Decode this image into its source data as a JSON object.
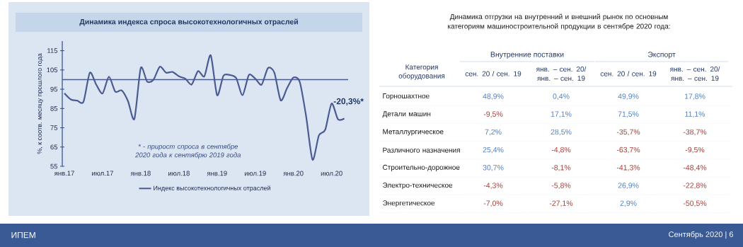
{
  "chart_data": [
    {
      "type": "line",
      "title": "Динамика индекса спроса высокотехнологичных отраслей",
      "ylabel": "%, к соотв. месяцу прошлого года",
      "x": [
        "2017-01",
        "2017-02",
        "2017-03",
        "2017-04",
        "2017-05",
        "2017-06",
        "2017-07",
        "2017-08",
        "2017-09",
        "2017-10",
        "2017-11",
        "2017-12",
        "2018-01",
        "2018-02",
        "2018-03",
        "2018-04",
        "2018-05",
        "2018-06",
        "2018-07",
        "2018-08",
        "2018-09",
        "2018-10",
        "2018-11",
        "2018-12",
        "2019-01",
        "2019-02",
        "2019-03",
        "2019-04",
        "2019-05",
        "2019-06",
        "2019-07",
        "2019-08",
        "2019-09",
        "2019-10",
        "2019-11",
        "2019-12",
        "2020-01",
        "2020-02",
        "2020-03",
        "2020-04",
        "2020-05",
        "2020-06",
        "2020-07",
        "2020-08",
        "2020-09"
      ],
      "series": [
        {
          "name": "Индекс высокотехнологичных отраслей",
          "color": "#4a5b92",
          "values": [
            92.9,
            89.7,
            89.1,
            88.5,
            103.6,
            97.4,
            92.8,
            101.5,
            93.7,
            94.4,
            88.8,
            79.6,
            106,
            99,
            99.9,
            106.7,
            103.6,
            104,
            101.7,
            100.5,
            97.4,
            104.4,
            101.7,
            112.6,
            91.9,
            102,
            102.4,
            100.8,
            91.9,
            102.4,
            100.5,
            97.4,
            106,
            103.6,
            89.2,
            95.6,
            101.1,
            98.7,
            80.8,
            58.4,
            71,
            74,
            87.6,
            79.4,
            79.8
          ]
        }
      ],
      "xlim": [
        "2016-12-21",
        "2020-09-19"
      ],
      "ylim": [
        55,
        120
      ],
      "xticks": [
        {
          "value": "2017-01",
          "label": "янв.17"
        },
        {
          "value": "2017-07",
          "label": "июл.17"
        },
        {
          "value": "2018-01",
          "label": "янв.18"
        },
        {
          "value": "2018-07",
          "label": "июл.18"
        },
        {
          "value": "2019-01",
          "label": "янв.19"
        },
        {
          "value": "2019-07",
          "label": "июл.19"
        },
        {
          "value": "2020-01",
          "label": "янв.20"
        },
        {
          "value": "2020-07",
          "label": "июл.20"
        }
      ],
      "yticks": [
        55,
        65,
        75,
        85,
        95,
        105,
        115
      ],
      "ref_lines": [
        {
          "axis": "y",
          "value": 100,
          "color": "#4a5b92"
        }
      ],
      "legend": "bottom",
      "annotations": [
        "-20,3%*",
        "* - прирост  спроса в сентябре 2020 года к сентябрю 2019 года"
      ]
    },
    {
      "type": "heatmap",
      "title": "Динамика отгрузки на внутренний и внешний рынок по основным категориям машиностроительной продукции в сентябре 2020 года:",
      "ylabel": "Категория оборудования",
      "categories": [
        "сен. 20 / сен. 19",
        "янв. – сен. 20/ янв. – сен. 19",
        "сен. 20 / сен. 19",
        "янв. – сен. 20/ янв. – сен. 19"
      ],
      "y_categories": [
        "Горношахтное",
        "Детали машин",
        "Металлургическое",
        "Различного назначения",
        "Строительно-дорожное",
        "Электро-техническое",
        "Энергетическое"
      ],
      "cells": [
        [
          48.9,
          0.4,
          49.9,
          17.8
        ],
        [
          -9.5,
          17.1,
          71.5,
          11.1
        ],
        [
          7.2,
          28.5,
          -35.7,
          -38.7
        ],
        [
          25.4,
          -4.8,
          -63.7,
          -9.5
        ],
        [
          30.7,
          -8.1,
          -41.3,
          -48.4
        ],
        [
          -4.3,
          -5.8,
          26.9,
          -22.8
        ],
        [
          -7.0,
          -27.1,
          2.9,
          -50.5
        ]
      ],
      "cell_labels": [
        [
          "48,9%",
          "0,4%",
          "49,9%",
          "17,8%"
        ],
        [
          "-9,5%",
          "17,1%",
          "71,5%",
          "11,1%"
        ],
        [
          "7,2%",
          "28,5%",
          "-35,7%",
          "-38,7%"
        ],
        [
          "25,4%",
          "-4,8%",
          "-63,7%",
          "-9,5%"
        ],
        [
          "30,7%",
          "-8,1%",
          "-41,3%",
          "-48,4%"
        ],
        [
          "-4,3%",
          "-5,8%",
          "26,9%",
          "-22,8%"
        ],
        [
          "-7,0%",
          "-27,1%",
          "2,9%",
          "-50,5%"
        ]
      ],
      "annotations": [
        "Внутренние поставки",
        "Экспорт",
        "ИПЕМ",
        "Сентябрь 2020 | 6"
      ]
    }
  ]
}
